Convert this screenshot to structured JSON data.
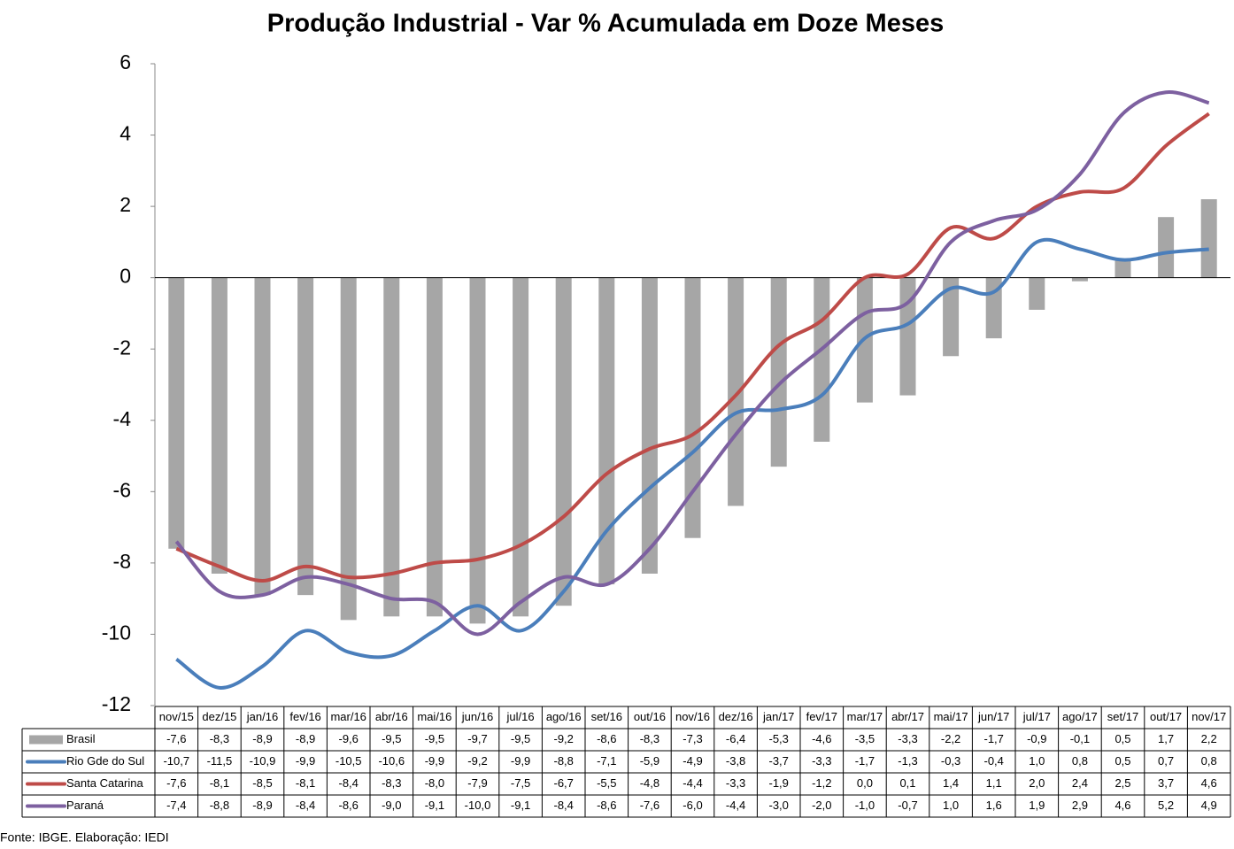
{
  "chart_data": {
    "type": "bar",
    "title": "Produção Industrial - Var % Acumulada em Doze Meses",
    "source": "Fonte: IBGE. Elaboração: IEDI",
    "categories": [
      "nov/15",
      "dez/15",
      "jan/16",
      "fev/16",
      "mar/16",
      "abr/16",
      "mai/16",
      "jun/16",
      "jul/16",
      "ago/16",
      "set/16",
      "out/16",
      "nov/16",
      "dez/16",
      "jan/17",
      "fev/17",
      "mar/17",
      "abr/17",
      "mai/17",
      "jun/17",
      "jul/17",
      "ago/17",
      "set/17",
      "out/17",
      "nov/17"
    ],
    "ylim": [
      -12,
      6
    ],
    "yticks": [
      -12,
      -10,
      -8,
      -6,
      -4,
      -2,
      0,
      2,
      4,
      6
    ],
    "series": [
      {
        "name": "Brasil",
        "type": "bar",
        "color": "#a6a6a6",
        "values": [
          -7.6,
          -8.3,
          -8.9,
          -8.9,
          -9.6,
          -9.5,
          -9.5,
          -9.7,
          -9.5,
          -9.2,
          -8.6,
          -8.3,
          -7.3,
          -6.4,
          -5.3,
          -4.6,
          -3.5,
          -3.3,
          -2.2,
          -1.7,
          -0.9,
          -0.1,
          0.5,
          1.7,
          2.2
        ],
        "value_labels": [
          "-7,6",
          "-8,3",
          "-8,9",
          "-8,9",
          "-9,6",
          "-9,5",
          "-9,5",
          "-9,7",
          "-9,5",
          "-9,2",
          "-8,6",
          "-8,3",
          "-7,3",
          "-6,4",
          "-5,3",
          "-4,6",
          "-3,5",
          "-3,3",
          "-2,2",
          "-1,7",
          "-0,9",
          "-0,1",
          "0,5",
          "1,7",
          "2,2"
        ]
      },
      {
        "name": "Rio Gde do Sul",
        "type": "line",
        "color": "#4a7ebb",
        "values": [
          -10.7,
          -11.5,
          -10.9,
          -9.9,
          -10.5,
          -10.6,
          -9.9,
          -9.2,
          -9.9,
          -8.8,
          -7.1,
          -5.9,
          -4.9,
          -3.8,
          -3.7,
          -3.3,
          -1.7,
          -1.3,
          -0.3,
          -0.4,
          1.0,
          0.8,
          0.5,
          0.7,
          0.8
        ],
        "value_labels": [
          "-10,7",
          "-11,5",
          "-10,9",
          "-9,9",
          "-10,5",
          "-10,6",
          "-9,9",
          "-9,2",
          "-9,9",
          "-8,8",
          "-7,1",
          "-5,9",
          "-4,9",
          "-3,8",
          "-3,7",
          "-3,3",
          "-1,7",
          "-1,3",
          "-0,3",
          "-0,4",
          "1,0",
          "0,8",
          "0,5",
          "0,7",
          "0,8"
        ]
      },
      {
        "name": "Santa Catarina",
        "type": "line",
        "color": "#be4b48",
        "values": [
          -7.6,
          -8.1,
          -8.5,
          -8.1,
          -8.4,
          -8.3,
          -8.0,
          -7.9,
          -7.5,
          -6.7,
          -5.5,
          -4.8,
          -4.4,
          -3.3,
          -1.9,
          -1.2,
          0.0,
          0.1,
          1.4,
          1.1,
          2.0,
          2.4,
          2.5,
          3.7,
          4.6
        ],
        "value_labels": [
          "-7,6",
          "-8,1",
          "-8,5",
          "-8,1",
          "-8,4",
          "-8,3",
          "-8,0",
          "-7,9",
          "-7,5",
          "-6,7",
          "-5,5",
          "-4,8",
          "-4,4",
          "-3,3",
          "-1,9",
          "-1,2",
          "0,0",
          "0,1",
          "1,4",
          "1,1",
          "2,0",
          "2,4",
          "2,5",
          "3,7",
          "4,6"
        ]
      },
      {
        "name": "Paraná",
        "type": "line",
        "color": "#7d60a0",
        "values": [
          -7.4,
          -8.8,
          -8.9,
          -8.4,
          -8.6,
          -9.0,
          -9.1,
          -10.0,
          -9.1,
          -8.4,
          -8.6,
          -7.6,
          -6.0,
          -4.4,
          -3.0,
          -2.0,
          -1.0,
          -0.7,
          1.0,
          1.6,
          1.9,
          2.9,
          4.6,
          5.2,
          4.9
        ],
        "value_labels": [
          "-7,4",
          "-8,8",
          "-8,9",
          "-8,4",
          "-8,6",
          "-9,0",
          "-9,1",
          "-10,0",
          "-9,1",
          "-8,4",
          "-8,6",
          "-7,6",
          "-6,0",
          "-4,4",
          "-3,0",
          "-2,0",
          "-1,0",
          "-0,7",
          "1,0",
          "1,6",
          "1,9",
          "2,9",
          "4,6",
          "5,2",
          "4,9"
        ]
      }
    ]
  }
}
